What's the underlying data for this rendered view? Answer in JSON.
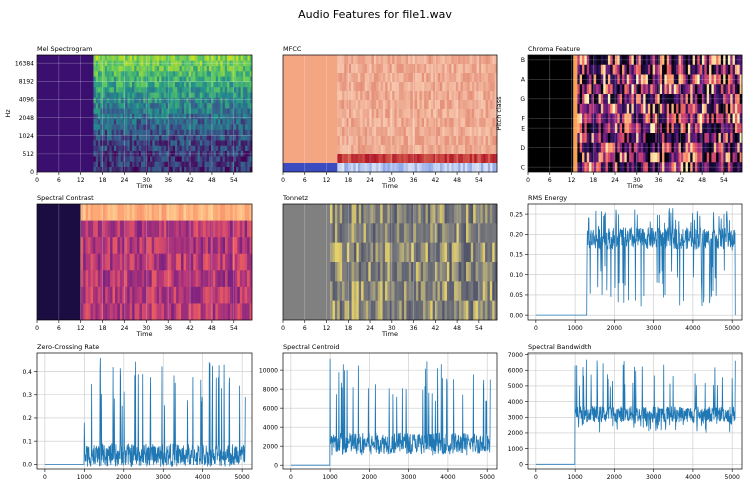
{
  "figure": {
    "title": "Audio Features for file1.wav"
  },
  "colors": {
    "line": "#1f77b4",
    "grid": "#c8c8c8",
    "axis": "#000000",
    "silence_dark": "#000000",
    "mfcc_fill": "#f4a582",
    "mfcc_band_low": "#3b4cc0",
    "mfcc_band_mid": "#d6604d",
    "tonnetz_gray": "#808080",
    "tonnetz_yellow": "#e6d26a",
    "contrast_top": "#f4a46a",
    "spec_purple": "#3b0f70",
    "spec_yellow": "#c8e020"
  },
  "chart_data": [
    {
      "id": "mel",
      "type": "heatmap",
      "title": "Mel Spectrogram",
      "xlabel": "Time",
      "ylabel": "Hz",
      "xlim": [
        0,
        59
      ],
      "xticks": [
        0,
        6,
        12,
        18,
        24,
        30,
        36,
        42,
        48,
        54
      ],
      "yticks": [
        "0",
        "512",
        "1024",
        "2048",
        "4096",
        "8192",
        "16384"
      ],
      "sound_onset_time": 15.5
    },
    {
      "id": "mfcc",
      "type": "heatmap",
      "title": "MFCC",
      "xlabel": "Time",
      "xlim": [
        0,
        59
      ],
      "xticks": [
        0,
        6,
        12,
        18,
        24,
        30,
        36,
        42,
        48,
        54
      ],
      "sound_onset_time": 15.0
    },
    {
      "id": "chroma",
      "type": "heatmap",
      "title": "Chroma Feature",
      "xlabel": "Time",
      "ylabel": "Pitch class",
      "xlim": [
        0,
        59
      ],
      "xticks": [
        0,
        6,
        12,
        18,
        24,
        30,
        36,
        42,
        48,
        54
      ],
      "yticks": [
        "C",
        "D",
        "E",
        "F",
        "G",
        "A",
        "B"
      ],
      "sound_onset_time": 12.5
    },
    {
      "id": "contrast",
      "type": "heatmap",
      "title": "Spectral Contrast",
      "xlabel": "Time",
      "xlim": [
        0,
        59
      ],
      "xticks": [
        0,
        6,
        12,
        18,
        24,
        30,
        36,
        42,
        48,
        54
      ],
      "sound_onset_time": 12.0
    },
    {
      "id": "tonnetz",
      "type": "heatmap",
      "title": "Tonnetz",
      "xlabel": "Time",
      "xlim": [
        0,
        59
      ],
      "xticks": [
        0,
        6,
        12,
        18,
        24,
        30,
        36,
        42,
        48,
        54
      ],
      "sound_onset_time": 13.0
    },
    {
      "id": "rms",
      "type": "line",
      "title": "RMS Energy",
      "xlim": [
        -200,
        5250
      ],
      "xticks": [
        0,
        1000,
        2000,
        3000,
        4000,
        5000
      ],
      "ylim": [
        -0.012,
        0.275
      ],
      "yticks": [
        0.0,
        0.05,
        0.1,
        0.15,
        0.2,
        0.25
      ],
      "ytick_decimals": 2,
      "x_start": 0,
      "x_end": 5080,
      "silent_value": 0.0,
      "onset_x": 1300,
      "active_range": [
        0.02,
        0.265
      ],
      "active_center": 0.19,
      "samples": [
        [
          0,
          0.0
        ],
        [
          1000,
          0.0
        ],
        [
          1200,
          0.0
        ],
        [
          1300,
          0.0
        ],
        [
          1350,
          0.24
        ],
        [
          1420,
          0.26
        ],
        [
          1500,
          0.2
        ],
        [
          1600,
          0.22
        ],
        [
          2000,
          0.19
        ],
        [
          2500,
          0.18
        ],
        [
          3000,
          0.2
        ],
        [
          3500,
          0.19
        ],
        [
          4000,
          0.18
        ],
        [
          4500,
          0.19
        ],
        [
          4900,
          0.2
        ],
        [
          5000,
          0.16
        ],
        [
          5080,
          0.0
        ]
      ]
    },
    {
      "id": "zcr",
      "type": "line",
      "title": "Zero-Crossing Rate",
      "xlim": [
        -200,
        5250
      ],
      "xticks": [
        0,
        1000,
        2000,
        3000,
        4000,
        5000
      ],
      "ylim": [
        -0.02,
        0.48
      ],
      "yticks": [
        0.0,
        0.1,
        0.2,
        0.3,
        0.4
      ],
      "ytick_decimals": 1,
      "x_start": 0,
      "x_end": 5080,
      "silent_value": 0.0,
      "onset_x": 1000,
      "active_range": [
        0.0,
        0.46
      ],
      "active_center": 0.04,
      "samples": [
        [
          0,
          0.0
        ],
        [
          990,
          0.0
        ],
        [
          1000,
          0.18
        ],
        [
          1100,
          0.08
        ],
        [
          1400,
          0.41
        ],
        [
          2000,
          0.05
        ],
        [
          2500,
          0.04
        ],
        [
          3000,
          0.05
        ],
        [
          3900,
          0.46
        ],
        [
          4000,
          0.06
        ],
        [
          5000,
          0.04
        ],
        [
          5080,
          0.29
        ]
      ]
    },
    {
      "id": "centroid",
      "type": "line",
      "title": "Spectral Centroid",
      "xlim": [
        -200,
        5250
      ],
      "xticks": [
        0,
        1000,
        2000,
        3000,
        4000,
        5000
      ],
      "ylim": [
        -400,
        11800
      ],
      "yticks": [
        0,
        2000,
        4000,
        6000,
        8000,
        10000
      ],
      "ytick_decimals": 0,
      "x_start": 0,
      "x_end": 5080,
      "silent_value": 0,
      "onset_x": 1000,
      "active_range": [
        1000,
        11200
      ],
      "active_center": 2300,
      "samples": [
        [
          0,
          0
        ],
        [
          990,
          0
        ],
        [
          1000,
          11200
        ],
        [
          1100,
          5500
        ],
        [
          1500,
          2500
        ],
        [
          2000,
          2200
        ],
        [
          3000,
          2400
        ],
        [
          4000,
          2000
        ],
        [
          5000,
          1500
        ],
        [
          5080,
          9000
        ]
      ]
    },
    {
      "id": "bandwidth",
      "type": "line",
      "title": "Spectral Bandwidth",
      "xlim": [
        -200,
        5250
      ],
      "xticks": [
        0,
        1000,
        2000,
        3000,
        4000,
        5000
      ],
      "ylim": [
        -300,
        7100
      ],
      "yticks": [
        0,
        1000,
        2000,
        3000,
        4000,
        5000,
        6000,
        7000
      ],
      "ytick_decimals": 0,
      "x_start": 0,
      "x_end": 5080,
      "silent_value": 0,
      "onset_x": 1000,
      "active_range": [
        2000,
        6700
      ],
      "active_center": 3200,
      "samples": [
        [
          0,
          0
        ],
        [
          990,
          0
        ],
        [
          1000,
          6300
        ],
        [
          1100,
          6600
        ],
        [
          1200,
          6200
        ],
        [
          1300,
          3400
        ],
        [
          2000,
          3300
        ],
        [
          3000,
          3200
        ],
        [
          4000,
          3100
        ],
        [
          4900,
          2600
        ],
        [
          5000,
          5500
        ],
        [
          5080,
          6600
        ]
      ]
    }
  ]
}
